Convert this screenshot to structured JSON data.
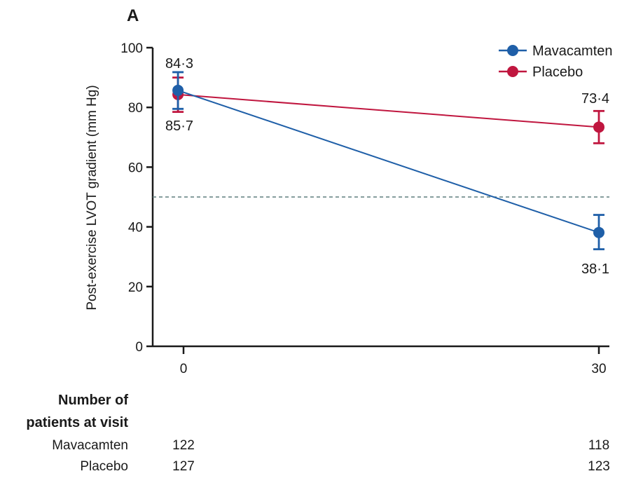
{
  "panel_label": "A",
  "colors": {
    "mavacamten": "#1f5fa8",
    "placebo": "#c0163f",
    "axis": "#1a1a1a",
    "reference": "#5f7f7f"
  },
  "chart_data": {
    "type": "line",
    "ylabel": "Post-exercise LVOT gradient (mm Hg)",
    "xlabel": "",
    "x": [
      0,
      30
    ],
    "x_ticks": [
      "0",
      "30"
    ],
    "ylim": [
      0,
      100
    ],
    "y_ticks": [
      "0",
      "20",
      "40",
      "60",
      "80",
      "100"
    ],
    "grid": false,
    "legend_position": "top-right",
    "reference_line_y": 50,
    "series": [
      {
        "name": "Mavacamten",
        "values": [
          85.7,
          38.1
        ],
        "ci_low": [
          79.5,
          32.5
        ],
        "ci_high": [
          91.8,
          44.0
        ],
        "labels": [
          "85·7",
          "38·1"
        ],
        "marker_offset_x": [
          -0.4,
          0
        ]
      },
      {
        "name": "Placebo",
        "values": [
          84.3,
          73.4
        ],
        "ci_low": [
          78.5,
          68.0
        ],
        "ci_high": [
          90.0,
          78.8
        ],
        "labels": [
          "84·3",
          "73·4"
        ],
        "marker_offset_x": [
          -0.4,
          0
        ]
      }
    ]
  },
  "patients_table": {
    "header_line1": "Number of",
    "header_line2": "patients at visit",
    "rows": [
      {
        "label": "Mavacamten",
        "values": [
          "122",
          "118"
        ]
      },
      {
        "label": "Placebo",
        "values": [
          "127",
          "123"
        ]
      }
    ]
  }
}
